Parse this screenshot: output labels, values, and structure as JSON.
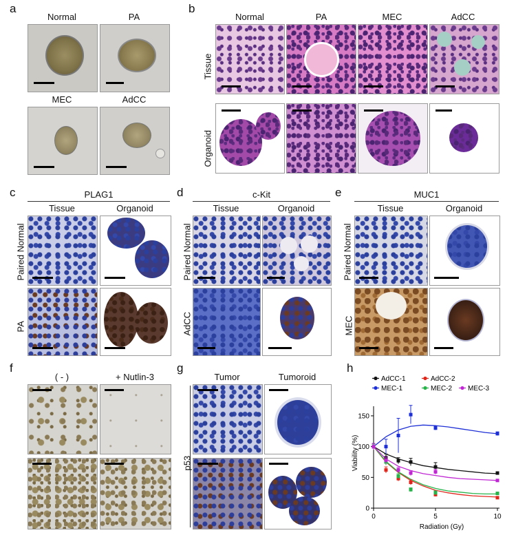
{
  "panel_letters": [
    "a",
    "b",
    "c",
    "d",
    "e",
    "f",
    "g",
    "h"
  ],
  "panel_a": {
    "labels": [
      "Normal",
      "PA",
      "MEC",
      "AdCC"
    ]
  },
  "panel_b": {
    "columns": [
      "Normal",
      "PA",
      "MEC",
      "AdCC"
    ],
    "rows": [
      "Tissue",
      "Organoid"
    ]
  },
  "panel_c": {
    "marker": "PLAG1",
    "columns": [
      "Tissue",
      "Organoid"
    ],
    "rows": [
      "Paired Normal",
      "PA"
    ]
  },
  "panel_d": {
    "marker": "c-Kit",
    "columns": [
      "Tissue",
      "Organoid"
    ],
    "rows": [
      "Paired Normal",
      "AdCC"
    ]
  },
  "panel_e": {
    "marker": "MUC1",
    "columns": [
      "Tissue",
      "Organoid"
    ],
    "rows": [
      "Paired Normal",
      "MEC"
    ]
  },
  "panel_f": {
    "columns": [
      "( - )",
      "+ Nutlin-3"
    ]
  },
  "panel_g": {
    "columns": [
      "Tumor",
      "Tumoroid"
    ],
    "row": "p53"
  },
  "chart_data": {
    "type": "scatter",
    "xlabel": "Radiation (Gy)",
    "ylabel": "Viability (%)",
    "xlim": [
      0,
      10
    ],
    "ylim": [
      0,
      160
    ],
    "xticks": [
      0,
      5,
      10
    ],
    "yticks": [
      0,
      50,
      100,
      150
    ],
    "legend_position": "top",
    "series": [
      {
        "name": "AdCC-1",
        "color": "#111111",
        "x": [
          0,
          1,
          2,
          3,
          5,
          10
        ],
        "y": [
          100,
          82,
          77,
          75,
          67,
          57
        ],
        "err": [
          5,
          6,
          5,
          6,
          7,
          2
        ],
        "fit": [
          [
            0,
            100
          ],
          [
            1,
            88
          ],
          [
            2,
            80
          ],
          [
            3,
            74
          ],
          [
            4,
            69
          ],
          [
            5,
            66
          ],
          [
            6,
            63
          ],
          [
            7,
            61
          ],
          [
            8,
            59
          ],
          [
            9,
            57
          ],
          [
            10,
            56
          ]
        ]
      },
      {
        "name": "AdCC-2",
        "color": "#e0261b",
        "x": [
          0,
          1,
          2,
          3,
          5,
          10
        ],
        "y": [
          100,
          62,
          48,
          42,
          22,
          17
        ],
        "err": [
          5,
          5,
          4,
          4,
          3,
          2
        ],
        "fit": [
          [
            0,
            100
          ],
          [
            1,
            75
          ],
          [
            2,
            58
          ],
          [
            3,
            45
          ],
          [
            4,
            36
          ],
          [
            5,
            29
          ],
          [
            6,
            25
          ],
          [
            7,
            22
          ],
          [
            8,
            20
          ],
          [
            9,
            19
          ],
          [
            10,
            18
          ]
        ]
      },
      {
        "name": "MEC-1",
        "color": "#1d2fd6",
        "x": [
          0,
          1,
          2,
          3,
          5,
          10
        ],
        "y": [
          100,
          100,
          118,
          152,
          130,
          121
        ],
        "err": [
          5,
          12,
          28,
          15,
          3,
          3
        ],
        "fit": [
          [
            0,
            100
          ],
          [
            1,
            116
          ],
          [
            2,
            127
          ],
          [
            3,
            133
          ],
          [
            4,
            135
          ],
          [
            5,
            134
          ],
          [
            6,
            132
          ],
          [
            7,
            129
          ],
          [
            8,
            126
          ],
          [
            9,
            123
          ],
          [
            10,
            121
          ]
        ]
      },
      {
        "name": "MEC-2",
        "color": "#27b34a",
        "x": [
          0,
          1,
          2,
          3,
          5,
          10
        ],
        "y": [
          100,
          75,
          52,
          30,
          25,
          24
        ],
        "err": [
          4,
          5,
          4,
          3,
          3,
          2
        ],
        "fit": [
          [
            0,
            100
          ],
          [
            1,
            76
          ],
          [
            2,
            59
          ],
          [
            3,
            47
          ],
          [
            4,
            38
          ],
          [
            5,
            32
          ],
          [
            6,
            28
          ],
          [
            7,
            26
          ],
          [
            8,
            24
          ],
          [
            9,
            23
          ],
          [
            10,
            23
          ]
        ]
      },
      {
        "name": "MEC-3",
        "color": "#c026d3",
        "x": [
          0,
          1,
          2,
          3,
          5,
          10
        ],
        "y": [
          100,
          78,
          62,
          57,
          59,
          45
        ],
        "err": [
          5,
          5,
          4,
          4,
          4,
          2
        ],
        "fit": [
          [
            0,
            100
          ],
          [
            1,
            80
          ],
          [
            2,
            68
          ],
          [
            3,
            61
          ],
          [
            4,
            56
          ],
          [
            5,
            53
          ],
          [
            6,
            50
          ],
          [
            7,
            48
          ],
          [
            8,
            47
          ],
          [
            9,
            46
          ],
          [
            10,
            45
          ]
        ]
      }
    ]
  }
}
